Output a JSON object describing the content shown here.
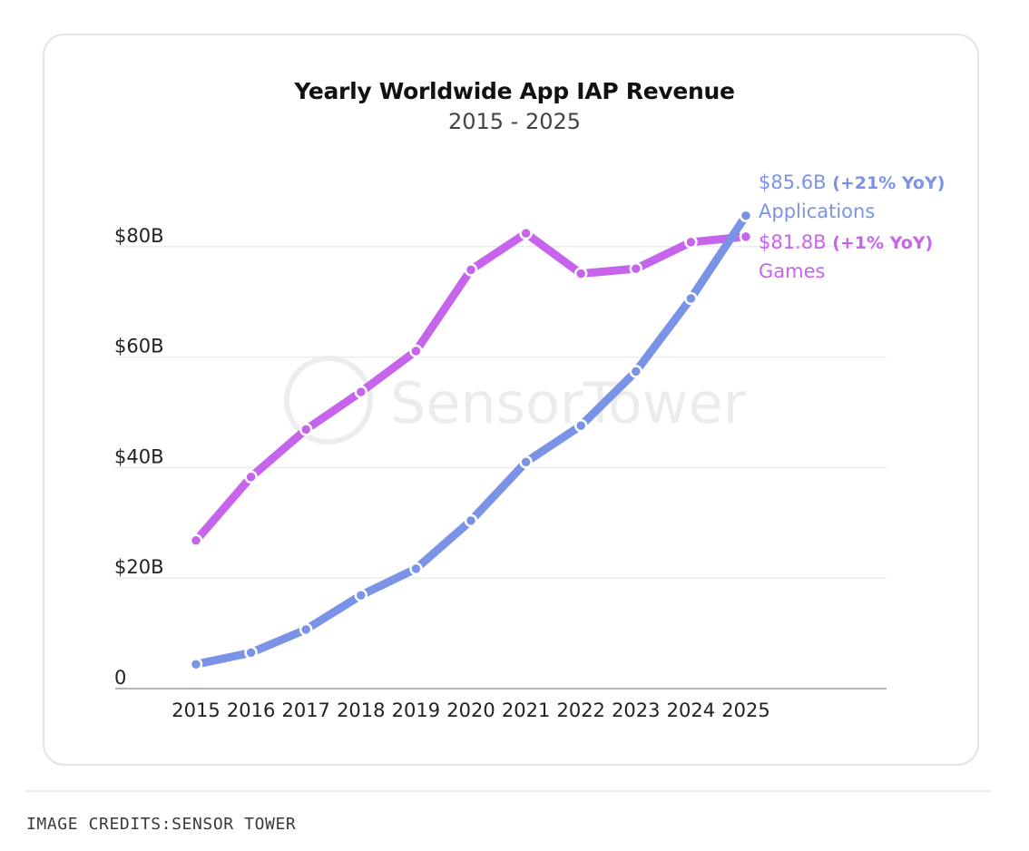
{
  "chart_data": {
    "type": "line",
    "title": "Yearly Worldwide App IAP Revenue",
    "subtitle": "2015 - 2025",
    "xlabel": "",
    "ylabel": "",
    "ylim": [
      0,
      100
    ],
    "y_ticks": [
      {
        "value": 0,
        "label": "0"
      },
      {
        "value": 20,
        "label": "$20B"
      },
      {
        "value": 40,
        "label": "$40B"
      },
      {
        "value": 60,
        "label": "$60B"
      },
      {
        "value": 80,
        "label": "$80B"
      }
    ],
    "categories": [
      "2015",
      "2016",
      "2017",
      "2018",
      "2019",
      "2020",
      "2021",
      "2022",
      "2023",
      "2024",
      "2025"
    ],
    "grid": true,
    "series": [
      {
        "name": "Games",
        "color": "#c764ec",
        "values": [
          26.8,
          38.3,
          46.9,
          53.7,
          61.1,
          75.8,
          82.4,
          75.1,
          76.0,
          80.8,
          81.8
        ],
        "end_value_label": "$81.8B",
        "end_yoy_label": "(+1% YoY)"
      },
      {
        "name": "Applications",
        "color": "#7b93e6",
        "values": [
          4.4,
          6.5,
          10.7,
          16.9,
          21.7,
          30.4,
          41.0,
          47.6,
          57.4,
          70.6,
          85.6
        ],
        "end_value_label": "$85.6B",
        "end_yoy_label": "(+21% YoY)"
      }
    ]
  },
  "watermark": "SensorTower",
  "credits": "IMAGE CREDITS:SENSOR TOWER"
}
